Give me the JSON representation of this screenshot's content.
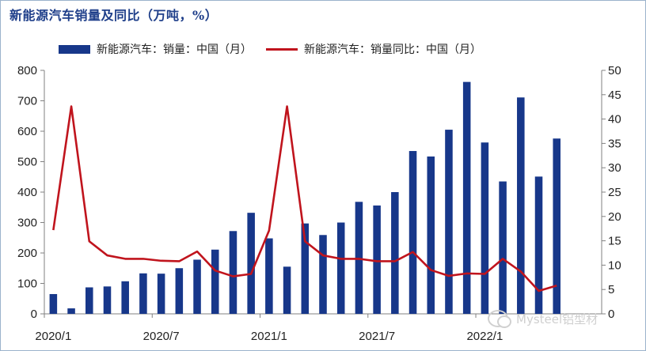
{
  "chart_data": {
    "type": "bar+line",
    "title": "新能源汽车销量及同比（万吨，%）",
    "legend_placement": "top",
    "colors": {
      "bar": "#17378a",
      "line": "#c0141d",
      "axis": "#808080",
      "title": "#1f3f8a"
    },
    "months": [
      "2020/1",
      "2020/2",
      "2020/3",
      "2020/4",
      "2020/5",
      "2020/6",
      "2020/7",
      "2020/8",
      "2020/9",
      "2020/10",
      "2020/11",
      "2020/12",
      "2021/1",
      "2021/2",
      "2021/3",
      "2021/4",
      "2021/5",
      "2021/6",
      "2021/7",
      "2021/8",
      "2021/9",
      "2021/10",
      "2021/11",
      "2021/12",
      "2022/1",
      "2022/2",
      "2022/3",
      "2022/4",
      "2022/5",
      "2022/6",
      "2022/7"
    ],
    "x_tick_labels": [
      "2020/1",
      "2020/7",
      "2021/1",
      "2021/7",
      "2022/1"
    ],
    "x_tick_indices": [
      0,
      6,
      12,
      18,
      24
    ],
    "series": [
      {
        "name": "新能源汽车：销量：中国（月）",
        "type": "bar",
        "axis": "left",
        "values": [
          65,
          18,
          87,
          90,
          107,
          133,
          132,
          150,
          178,
          211,
          272,
          332,
          248,
          155,
          297,
          259,
          300,
          368,
          356,
          400,
          535,
          517,
          605,
          762,
          563,
          435,
          711,
          451,
          576,
          null,
          null
        ]
      },
      {
        "name": "新能源汽车：销量同比：中国（月）",
        "type": "line",
        "axis": "right",
        "values": [
          17.2,
          42.6,
          14.9,
          12.0,
          11.3,
          11.3,
          10.9,
          10.8,
          12.8,
          8.9,
          7.7,
          8.2,
          17.1,
          42.6,
          14.9,
          12.0,
          11.3,
          11.3,
          10.8,
          10.8,
          12.7,
          9.0,
          7.8,
          8.3,
          8.2,
          11.3,
          8.7,
          4.7,
          5.8,
          null,
          null
        ]
      }
    ],
    "y_left": {
      "min": 0,
      "max": 800,
      "ticks": [
        0,
        100,
        200,
        300,
        400,
        500,
        600,
        700,
        800
      ]
    },
    "y_right": {
      "min": 0,
      "max": 50,
      "ticks": [
        0,
        5,
        10,
        15,
        20,
        25,
        30,
        35,
        40,
        45,
        50
      ]
    },
    "grid": false
  },
  "watermark": {
    "text": "Mysteel铝型材"
  }
}
